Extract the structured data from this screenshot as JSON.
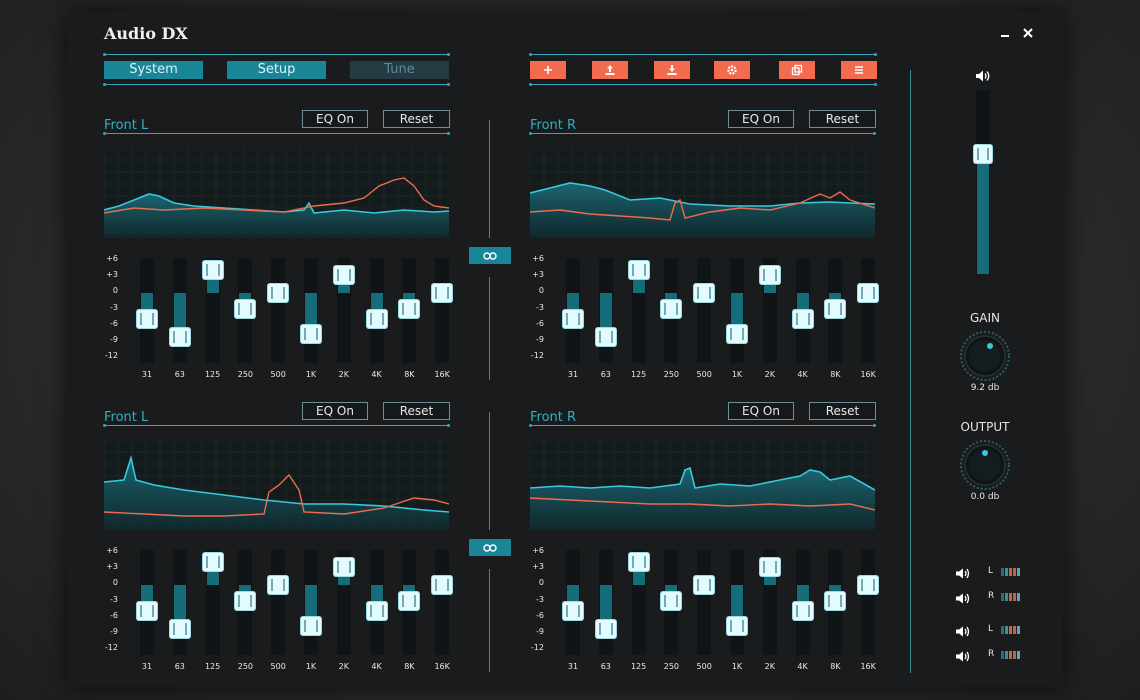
{
  "app": {
    "title": "Audio DX",
    "minimize_icon": "minimize-icon",
    "close_icon": "close-icon"
  },
  "tabs": [
    {
      "label": "System",
      "active": true
    },
    {
      "label": "Setup",
      "active": true
    },
    {
      "label": "Tune",
      "active": false
    }
  ],
  "toolbar": [
    {
      "name": "add",
      "icon": "plus-icon"
    },
    {
      "name": "upload",
      "icon": "upload-icon"
    },
    {
      "name": "download",
      "icon": "download-icon"
    },
    {
      "name": "settings",
      "icon": "gear-icon"
    },
    {
      "name": "copy",
      "icon": "copy-icon"
    },
    {
      "name": "menu",
      "icon": "menu-icon"
    }
  ],
  "common": {
    "eq_on_label": "EQ On",
    "reset_label": "Reset",
    "db_ticks": [
      "+6",
      "+3",
      "0",
      "-3",
      "-6",
      "-9",
      "-12"
    ],
    "freqs": [
      "31",
      "63",
      "125",
      "250",
      "500",
      "1K",
      "2K",
      "4K",
      "8K",
      "16K"
    ]
  },
  "panels": [
    {
      "title": "Front L",
      "bands_db": [
        -5,
        -8.5,
        4.5,
        -3,
        0,
        -8,
        3.5,
        -5,
        -3,
        0
      ]
    },
    {
      "title": "Front R",
      "bands_db": [
        -5,
        -8.5,
        4.5,
        -3,
        0,
        -8,
        3.5,
        -5,
        -3,
        0
      ]
    },
    {
      "title": "Front L",
      "bands_db": [
        -5,
        -8.5,
        4.5,
        -3,
        0,
        -8,
        3.5,
        -5,
        -3,
        0
      ]
    },
    {
      "title": "Front R",
      "bands_db": [
        -5,
        -8.5,
        4.5,
        -3,
        0,
        -8,
        3.5,
        -5,
        -3,
        0
      ]
    }
  ],
  "link_icon": "link-icon",
  "volume": {
    "icon": "speaker-icon",
    "level": 0.65
  },
  "gain": {
    "label": "GAIN",
    "value": "9.2 db"
  },
  "output": {
    "label": "OUTPUT",
    "value": "0.0 db"
  },
  "channels": [
    {
      "label": "L",
      "icon": "speaker-icon"
    },
    {
      "label": "R",
      "icon": "speaker-icon"
    },
    {
      "label": "L",
      "icon": "speaker-icon"
    },
    {
      "label": "R",
      "icon": "speaker-icon"
    }
  ],
  "colors": {
    "accent": "#1a8596",
    "accent_line": "#36a7b8",
    "orange": "#f26b4e",
    "curve_cyan": "#38c9dd",
    "curve_orange": "#ee6c4d"
  }
}
